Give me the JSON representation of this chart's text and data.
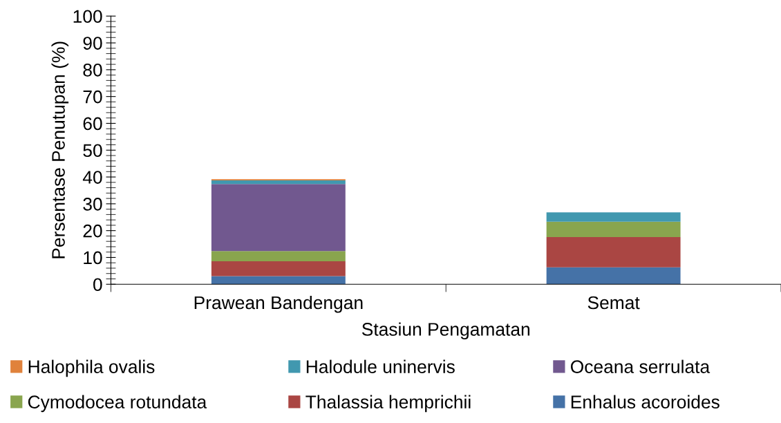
{
  "chart_data": {
    "type": "bar",
    "stacked": true,
    "xlabel": "Stasiun Pengamatan",
    "ylabel": "Persentase Penutupan (%)",
    "categories": [
      "Prawean Bandengan",
      "Semat"
    ],
    "series": [
      {
        "name": "Enhalus acoroides",
        "color": "#4572a7",
        "values": [
          3.0,
          6.3
        ]
      },
      {
        "name": "Thalassia hemprichii",
        "color": "#aa4643",
        "values": [
          5.6,
          11.3
        ]
      },
      {
        "name": "Cymodocea rotundata",
        "color": "#89a54e",
        "values": [
          3.8,
          5.7
        ]
      },
      {
        "name": "Oceana serrulata",
        "color": "#71588f",
        "values": [
          25.0,
          0
        ]
      },
      {
        "name": "Halodule uninervis",
        "color": "#4198af",
        "values": [
          1.3,
          3.5
        ]
      },
      {
        "name": "Halophila ovalis",
        "color": "#e0823c",
        "values": [
          0.5,
          0
        ]
      }
    ],
    "ylim": [
      0,
      100
    ],
    "yticks": [
      0,
      10,
      20,
      30,
      40,
      50,
      60,
      70,
      80,
      90,
      100
    ],
    "grid": false,
    "legend": "bottom"
  }
}
